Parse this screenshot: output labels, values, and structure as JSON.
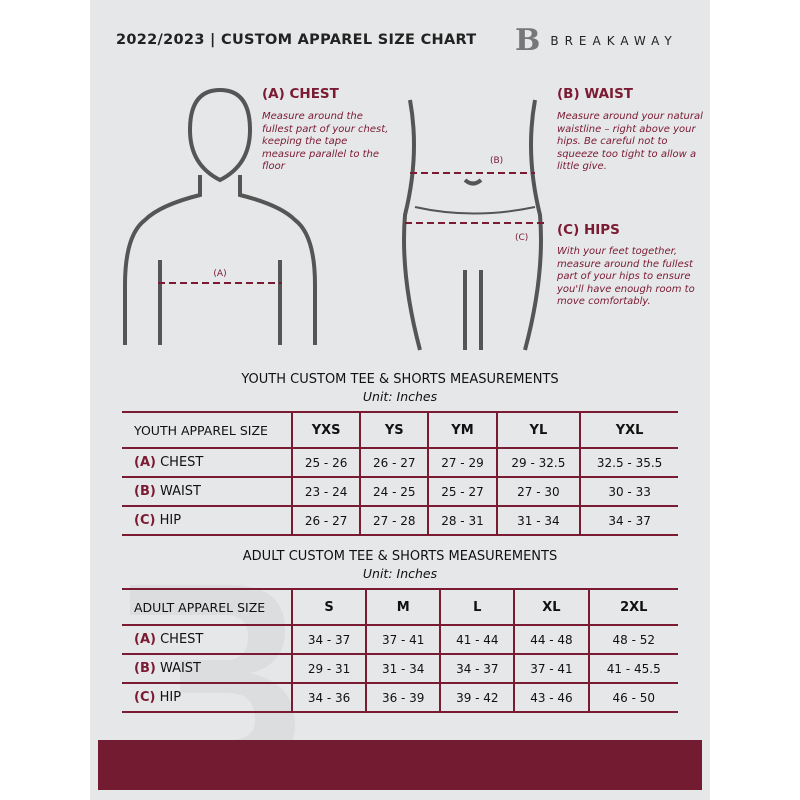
{
  "header": {
    "title": "2022/2023  |  CUSTOM APPAREL SIZE CHART",
    "brand": "BREAKAWAY",
    "logo_letter": "B"
  },
  "measures": {
    "chest": {
      "label": "(A) CHEST",
      "marker": "(A)",
      "desc": "Measure around the fullest part of your chest, keeping the tape measure parallel to the floor"
    },
    "waist": {
      "label": "(B) WAIST",
      "marker": "(B)",
      "desc": "Measure around your natural waistline – right above your hips. Be careful not to squeeze too tight to allow a little give."
    },
    "hips": {
      "label": "(C) HIPS",
      "marker": "(C)",
      "desc": "With your feet together, measure around the fullest part of your hips to ensure you'll have enough room to move comfortably."
    }
  },
  "youth": {
    "title": "YOUTH CUSTOM TEE & SHORTS MEASUREMENTS",
    "unit": "Unit: Inches",
    "header": "YOUTH APPAREL SIZE",
    "sizes": [
      "YXS",
      "YS",
      "YM",
      "YL",
      "YXL"
    ],
    "rows": [
      {
        "letter": "(A)",
        "name": "CHEST",
        "values": [
          "25 - 26",
          "26 - 27",
          "27 - 29",
          "29 - 32.5",
          "32.5 - 35.5"
        ]
      },
      {
        "letter": "(B)",
        "name": "WAIST",
        "values": [
          "23 - 24",
          "24 - 25",
          "25 - 27",
          "27 - 30",
          "30 - 33"
        ]
      },
      {
        "letter": "(C)",
        "name": "HIP",
        "values": [
          "26 - 27",
          "27 - 28",
          "28 - 31",
          "31 - 34",
          "34 - 37"
        ]
      }
    ]
  },
  "adult": {
    "title": "ADULT CUSTOM TEE & SHORTS MEASUREMENTS",
    "unit": "Unit: Inches",
    "header": "ADULT APPAREL SIZE",
    "sizes": [
      "S",
      "M",
      "L",
      "XL",
      "2XL"
    ],
    "rows": [
      {
        "letter": "(A)",
        "name": "CHEST",
        "values": [
          "34 - 37",
          "37 - 41",
          "41 - 44",
          "44 - 48",
          "48 - 52"
        ]
      },
      {
        "letter": "(B)",
        "name": "WAIST",
        "values": [
          "29 - 31",
          "31 - 34",
          "34 - 37",
          "37 - 41",
          "41 - 45.5"
        ]
      },
      {
        "letter": "(C)",
        "name": "HIP",
        "values": [
          "34 - 36",
          "36 - 39",
          "39 - 42",
          "43 - 46",
          "46 - 50"
        ]
      }
    ]
  },
  "colors": {
    "accent": "#7a1a33",
    "band": "#721b31",
    "background": "#e6e7e8"
  }
}
